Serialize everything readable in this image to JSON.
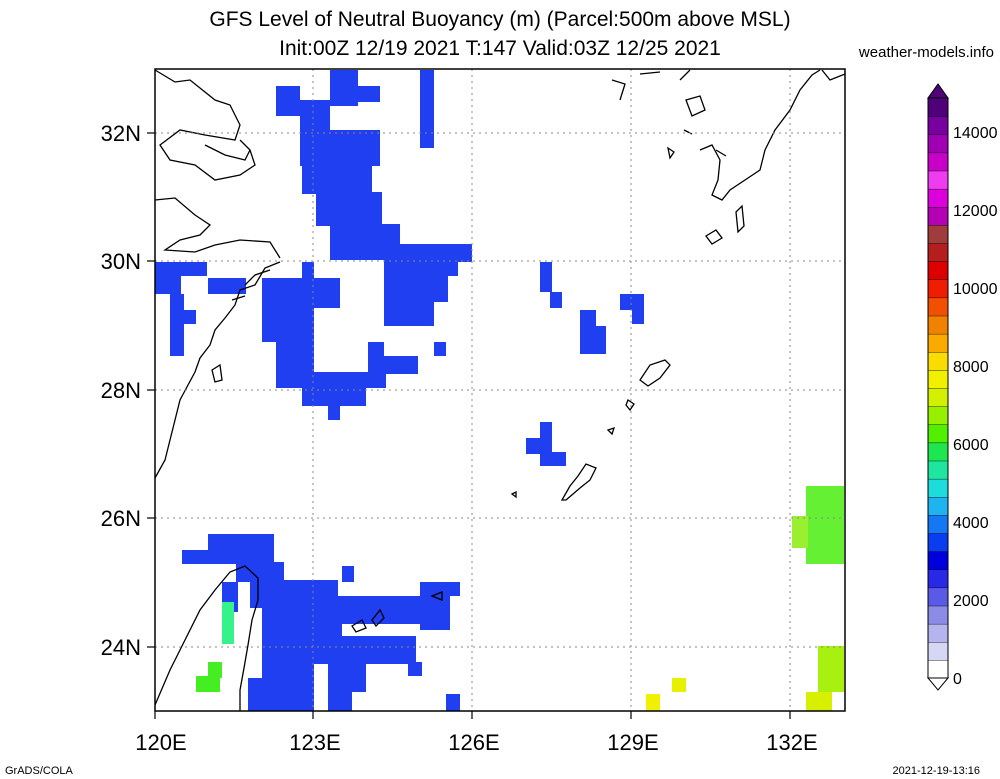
{
  "title": {
    "line1": "GFS Level of Neutral Buoyancy (m) (Parcel:500m above MSL)",
    "line2": "Init:00Z 12/19 2021 T:147 Valid:03Z 12/25 2021"
  },
  "site": "weather-models.info",
  "footer": {
    "left": "GrADS/COLA",
    "right": "2021-12-19-13:16"
  },
  "map": {
    "x_ticks": [
      "120E",
      "123E",
      "126E",
      "129E",
      "132E"
    ],
    "y_ticks": [
      "32N",
      "30N",
      "28N",
      "26N",
      "24N"
    ],
    "lon_range": [
      120,
      133.2
    ],
    "lat_range": [
      23,
      33
    ]
  },
  "colorbar": {
    "labels": [
      "0",
      "2000",
      "4000",
      "6000",
      "8000",
      "10000",
      "12000",
      "14000"
    ],
    "colors": [
      "#ffffff",
      "#d6d6f5",
      "#b4b4ee",
      "#8c8ce6",
      "#5a5ae6",
      "#2828e6",
      "#0000dc",
      "#0a3cf0",
      "#1478f5",
      "#1eb4f0",
      "#1edcdc",
      "#1ee6a0",
      "#1ee650",
      "#50f000",
      "#96f000",
      "#d2f000",
      "#f0f000",
      "#fadc00",
      "#faaa00",
      "#f08200",
      "#f05000",
      "#f01e00",
      "#dc0000",
      "#b41e1e",
      "#a03c3c",
      "#b400b4",
      "#dc00dc",
      "#f03cf0",
      "#c800c8",
      "#a000b4",
      "#7800a0",
      "#500078"
    ]
  }
}
